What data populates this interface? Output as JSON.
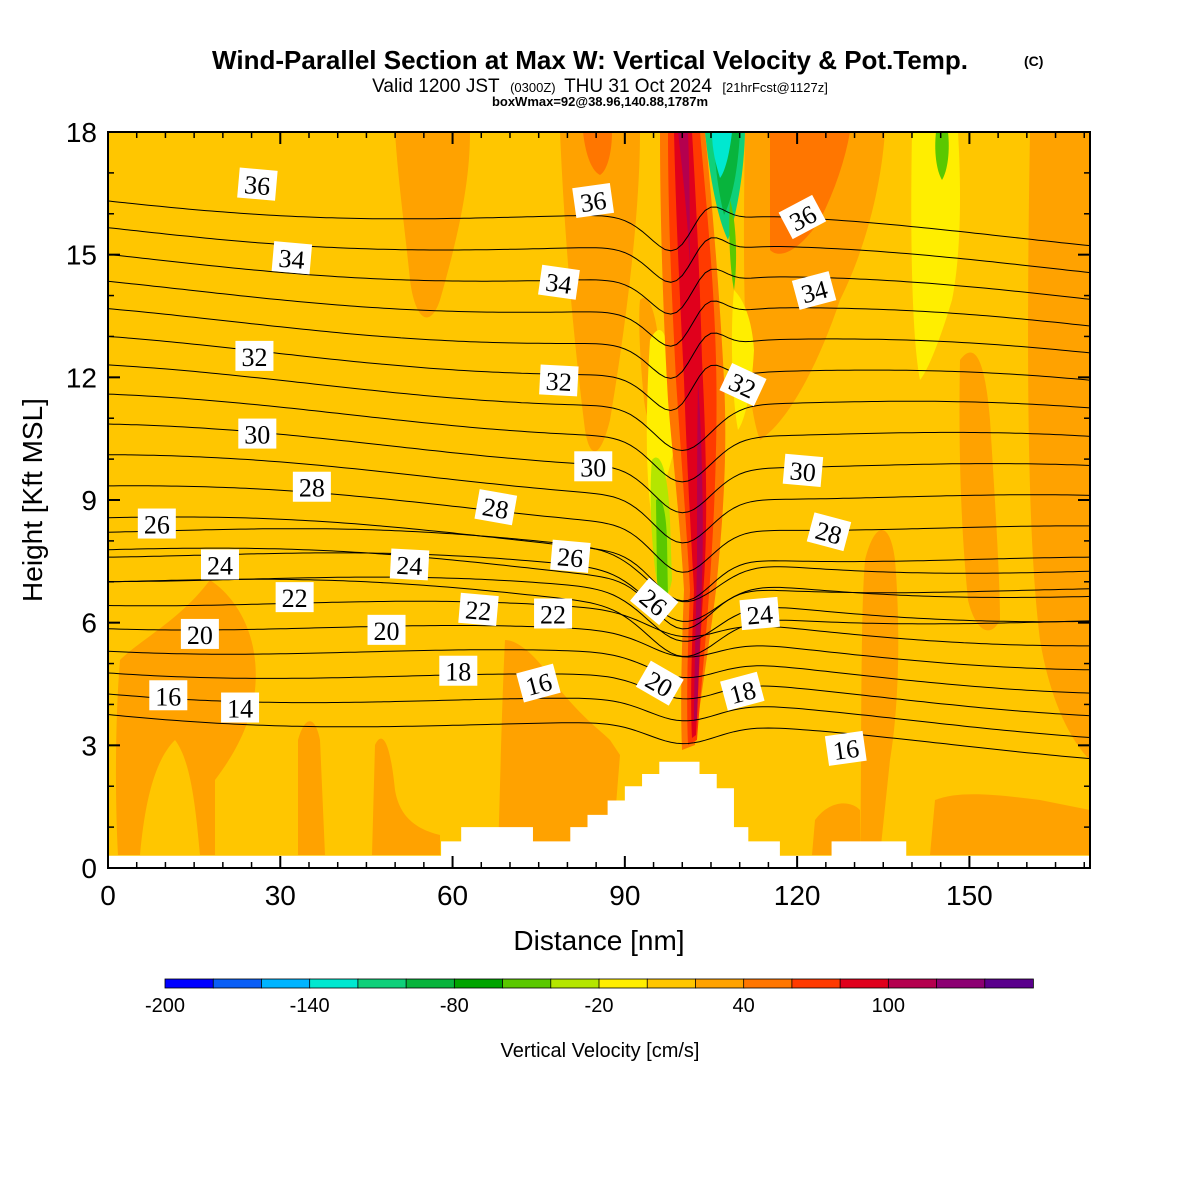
{
  "chart_data": {
    "type": "heatmap",
    "title": "Wind-Parallel Section at Max W: Vertical Velocity & Pot.Temp.",
    "title_mark": "(C)",
    "subtitle": {
      "part1": "Valid 1200 JST",
      "part2": "(0300Z)",
      "part3": "THU 31 Oct 2024",
      "part4": "[21hrFcst@1127z]"
    },
    "subtitle2": "boxWmax=92@38.96,140.88,1787m",
    "xlabel": "Distance [nm]",
    "ylabel": "Height [Kft MSL]",
    "xlim": [
      0,
      171
    ],
    "ylim": [
      0,
      18
    ],
    "xticks": [
      "0",
      "30",
      "60",
      "90",
      "120",
      "150"
    ],
    "yticks": [
      "0",
      "3",
      "6",
      "9",
      "12",
      "15",
      "18"
    ],
    "colorbar": {
      "label": "Vertical Velocity [cm/s]",
      "min": -200,
      "step": 20,
      "ticks": [
        "-200",
        "-140",
        "-80",
        "-20",
        "40",
        "100"
      ],
      "colors": [
        "#0000ff",
        "#0a5ef5",
        "#00b4ff",
        "#00e8d0",
        "#0fd07a",
        "#08b43c",
        "#00a400",
        "#5ac800",
        "#b4e600",
        "#ffee00",
        "#ffc600",
        "#ffa200",
        "#ff7600",
        "#ff3a00",
        "#e0001c",
        "#b4004e",
        "#8c0072",
        "#5a008c"
      ]
    },
    "theta_contours": {
      "levels": [
        14,
        15,
        16,
        17,
        18,
        19,
        20,
        21,
        22,
        23,
        24,
        25,
        26,
        27,
        28,
        29,
        30,
        31,
        32,
        33,
        34,
        35,
        36
      ],
      "labels": [
        {
          "text": "36",
          "x": 26,
          "y": 16.7,
          "angle": 5
        },
        {
          "text": "36",
          "x": 84.5,
          "y": 16.3,
          "angle": -8
        },
        {
          "text": "36",
          "x": 121,
          "y": 15.9,
          "angle": -28
        },
        {
          "text": "34",
          "x": 32,
          "y": 14.9,
          "angle": 5
        },
        {
          "text": "34",
          "x": 78.5,
          "y": 14.3,
          "angle": 8
        },
        {
          "text": "34",
          "x": 123,
          "y": 14.1,
          "angle": -15
        },
        {
          "text": "32",
          "x": 25.5,
          "y": 12.5,
          "angle": 0
        },
        {
          "text": "32",
          "x": 78.5,
          "y": 11.9,
          "angle": 3
        },
        {
          "text": "32",
          "x": 110.5,
          "y": 11.8,
          "angle": 25
        },
        {
          "text": "30",
          "x": 26,
          "y": 10.6,
          "angle": 0
        },
        {
          "text": "30",
          "x": 84.5,
          "y": 9.8,
          "angle": 0
        },
        {
          "text": "30",
          "x": 121,
          "y": 9.7,
          "angle": 5
        },
        {
          "text": "28",
          "x": 35.5,
          "y": 9.3,
          "angle": 0
        },
        {
          "text": "28",
          "x": 67.5,
          "y": 8.8,
          "angle": 10
        },
        {
          "text": "28",
          "x": 125.5,
          "y": 8.2,
          "angle": 15
        },
        {
          "text": "26",
          "x": 8.5,
          "y": 8.4,
          "angle": 0
        },
        {
          "text": "26",
          "x": 80.5,
          "y": 7.6,
          "angle": 5
        },
        {
          "text": "26",
          "x": 95,
          "y": 6.5,
          "angle": 40
        },
        {
          "text": "24",
          "x": 19.5,
          "y": 7.4,
          "angle": 0
        },
        {
          "text": "24",
          "x": 52.5,
          "y": 7.4,
          "angle": 3
        },
        {
          "text": "24",
          "x": 113.5,
          "y": 6.2,
          "angle": -5
        },
        {
          "text": "22",
          "x": 32.5,
          "y": 6.6,
          "angle": 0
        },
        {
          "text": "22",
          "x": 64.5,
          "y": 6.3,
          "angle": 5
        },
        {
          "text": "22",
          "x": 77.5,
          "y": 6.2,
          "angle": 0
        },
        {
          "text": "20",
          "x": 16,
          "y": 5.7,
          "angle": 0
        },
        {
          "text": "20",
          "x": 48.5,
          "y": 5.8,
          "angle": 0
        },
        {
          "text": "20",
          "x": 96,
          "y": 4.5,
          "angle": 30
        },
        {
          "text": "18",
          "x": 61,
          "y": 4.8,
          "angle": 0
        },
        {
          "text": "18",
          "x": 110.5,
          "y": 4.3,
          "angle": -15
        },
        {
          "text": "16",
          "x": 10.5,
          "y": 4.2,
          "angle": 0
        },
        {
          "text": "16",
          "x": 75,
          "y": 4.5,
          "angle": -15
        },
        {
          "text": "16",
          "x": 128.5,
          "y": 2.9,
          "angle": -8
        },
        {
          "text": "14",
          "x": 23,
          "y": 3.9,
          "angle": 0
        }
      ]
    },
    "terrain_heights": [
      {
        "x": 0,
        "h": 0.3
      },
      {
        "x": 58,
        "h": 0.65
      },
      {
        "x": 61.5,
        "h": 1.0
      },
      {
        "x": 74,
        "h": 0.65
      },
      {
        "x": 80.5,
        "h": 1.0
      },
      {
        "x": 83.5,
        "h": 1.3
      },
      {
        "x": 87,
        "h": 1.65
      },
      {
        "x": 90,
        "h": 2.0
      },
      {
        "x": 93,
        "h": 2.3
      },
      {
        "x": 96,
        "h": 2.6
      },
      {
        "x": 103,
        "h": 2.3
      },
      {
        "x": 106,
        "h": 1.95
      },
      {
        "x": 109,
        "h": 1.0
      },
      {
        "x": 111.5,
        "h": 0.65
      },
      {
        "x": 117,
        "h": 0.3
      },
      {
        "x": 126,
        "h": 0.65
      },
      {
        "x": 139,
        "h": 0.3
      }
    ]
  }
}
